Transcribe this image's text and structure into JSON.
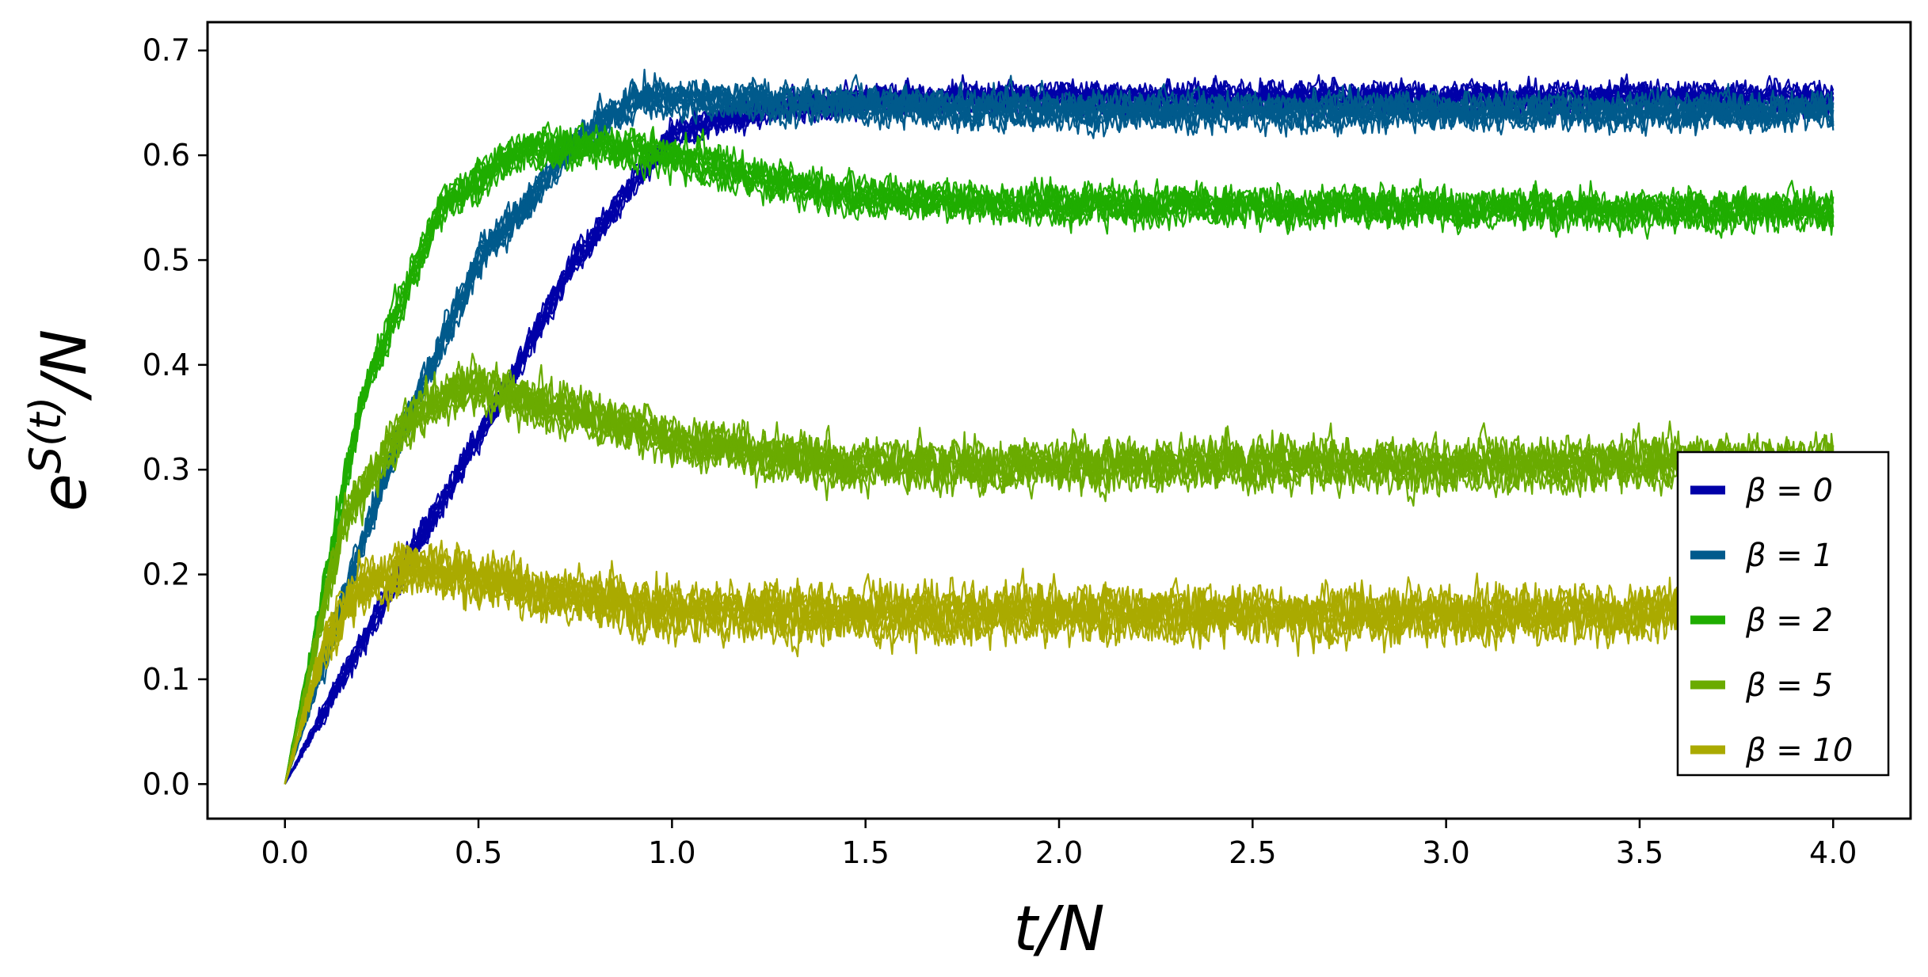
{
  "chart_data": {
    "type": "line",
    "xlabel": "t/N",
    "ylabel_base": "e",
    "ylabel_exponent": "S(t)",
    "ylabel_suffix": "/N",
    "xlim": [
      -0.2,
      4.2
    ],
    "ylim": [
      -0.033,
      0.727
    ],
    "x_ticks": [
      0.0,
      0.5,
      1.0,
      1.5,
      2.0,
      2.5,
      3.0,
      3.5,
      4.0
    ],
    "x_tick_labels": [
      "0.0",
      "0.5",
      "1.0",
      "1.5",
      "2.0",
      "2.5",
      "3.0",
      "3.5",
      "4.0"
    ],
    "y_ticks": [
      0.0,
      0.1,
      0.2,
      0.3,
      0.4,
      0.5,
      0.6,
      0.7
    ],
    "y_tick_labels": [
      "0.0",
      "0.1",
      "0.2",
      "0.3",
      "0.4",
      "0.5",
      "0.6",
      "0.7"
    ],
    "grid": false,
    "legend_position": "center-right",
    "runs_per_series": 10,
    "series": [
      {
        "name": "β = 0",
        "legend_label": "β = 0",
        "color": "#0000a8",
        "x": [
          0,
          0.25,
          0.5,
          0.75,
          1.0,
          1.25,
          1.5,
          1.75,
          2.0,
          2.5,
          3.0,
          3.5,
          4.0
        ],
        "y": [
          0.0,
          0.17,
          0.33,
          0.5,
          0.62,
          0.645,
          0.652,
          0.655,
          0.655,
          0.655,
          0.655,
          0.655,
          0.655
        ],
        "noise": 0.012
      },
      {
        "name": "β = 1",
        "legend_label": "β = 1",
        "color": "#005a8c",
        "x": [
          0,
          0.25,
          0.5,
          0.75,
          0.9,
          1.0,
          1.25,
          1.5,
          2.0,
          2.5,
          3.0,
          3.5,
          4.0
        ],
        "y": [
          0.0,
          0.29,
          0.5,
          0.61,
          0.655,
          0.655,
          0.652,
          0.648,
          0.643,
          0.642,
          0.642,
          0.642,
          0.642
        ],
        "noise": 0.015
      },
      {
        "name": "β = 2",
        "legend_label": "β = 2",
        "color": "#1fad00",
        "x": [
          0,
          0.2,
          0.4,
          0.6,
          0.8,
          1.0,
          1.25,
          1.5,
          2.0,
          2.5,
          3.0,
          3.5,
          4.0
        ],
        "y": [
          0.0,
          0.37,
          0.55,
          0.605,
          0.61,
          0.6,
          0.575,
          0.56,
          0.553,
          0.552,
          0.55,
          0.548,
          0.548
        ],
        "noise": 0.016
      },
      {
        "name": "β = 5",
        "legend_label": "β = 5",
        "color": "#6aab00",
        "x": [
          0,
          0.15,
          0.3,
          0.45,
          0.6,
          0.8,
          1.0,
          1.25,
          1.5,
          2.0,
          2.5,
          3.0,
          3.5,
          4.0
        ],
        "y": [
          0.0,
          0.25,
          0.34,
          0.38,
          0.37,
          0.35,
          0.33,
          0.315,
          0.305,
          0.305,
          0.308,
          0.305,
          0.308,
          0.308
        ],
        "noise": 0.02
      },
      {
        "name": "β = 10",
        "legend_label": "β = 10",
        "color": "#aaaa00",
        "x": [
          0,
          0.1,
          0.2,
          0.3,
          0.5,
          0.7,
          1.0,
          1.5,
          2.0,
          2.5,
          3.0,
          3.5,
          4.0
        ],
        "y": [
          0.0,
          0.13,
          0.19,
          0.205,
          0.195,
          0.18,
          0.165,
          0.162,
          0.163,
          0.16,
          0.16,
          0.162,
          0.165
        ],
        "noise": 0.022
      }
    ]
  }
}
